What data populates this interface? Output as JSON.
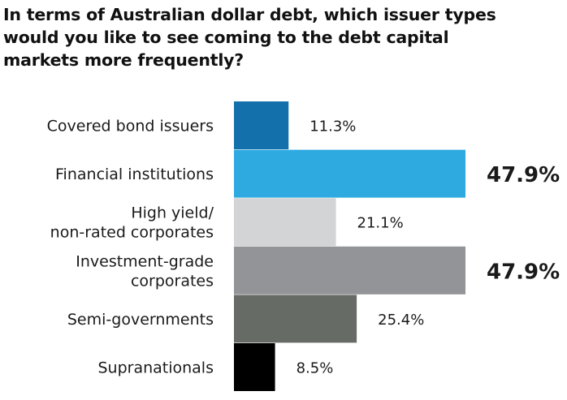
{
  "title_lines": [
    "In terms of Australian dollar debt, which issuer types",
    "would you like to see coming to the debt capital",
    "markets more frequently?"
  ],
  "chart_data": {
    "type": "bar",
    "orientation": "horizontal",
    "title": "In terms of Australian dollar debt, which issuer types would you like to see coming to the debt capital markets more frequently?",
    "categories": [
      [
        "Covered bond issuers"
      ],
      [
        "Financial institutions"
      ],
      [
        "High yield/",
        "non-rated corporates"
      ],
      [
        "Investment-grade",
        "corporates"
      ],
      [
        "Semi-governments"
      ],
      [
        "Supranationals"
      ]
    ],
    "values": [
      11.3,
      47.9,
      21.1,
      47.9,
      25.4,
      8.5
    ],
    "value_labels": [
      "11.3%",
      "47.9%",
      "21.1%",
      "47.9%",
      "25.4%",
      "8.5%"
    ],
    "colors": [
      "#1470aa",
      "#2eaae1",
      "#d3d4d5",
      "#929497",
      "#676b66",
      "#000000"
    ],
    "highlighted": [
      false,
      true,
      false,
      true,
      false,
      false
    ],
    "xlim": [
      0,
      47.9
    ],
    "grid": false,
    "legend": "none"
  }
}
